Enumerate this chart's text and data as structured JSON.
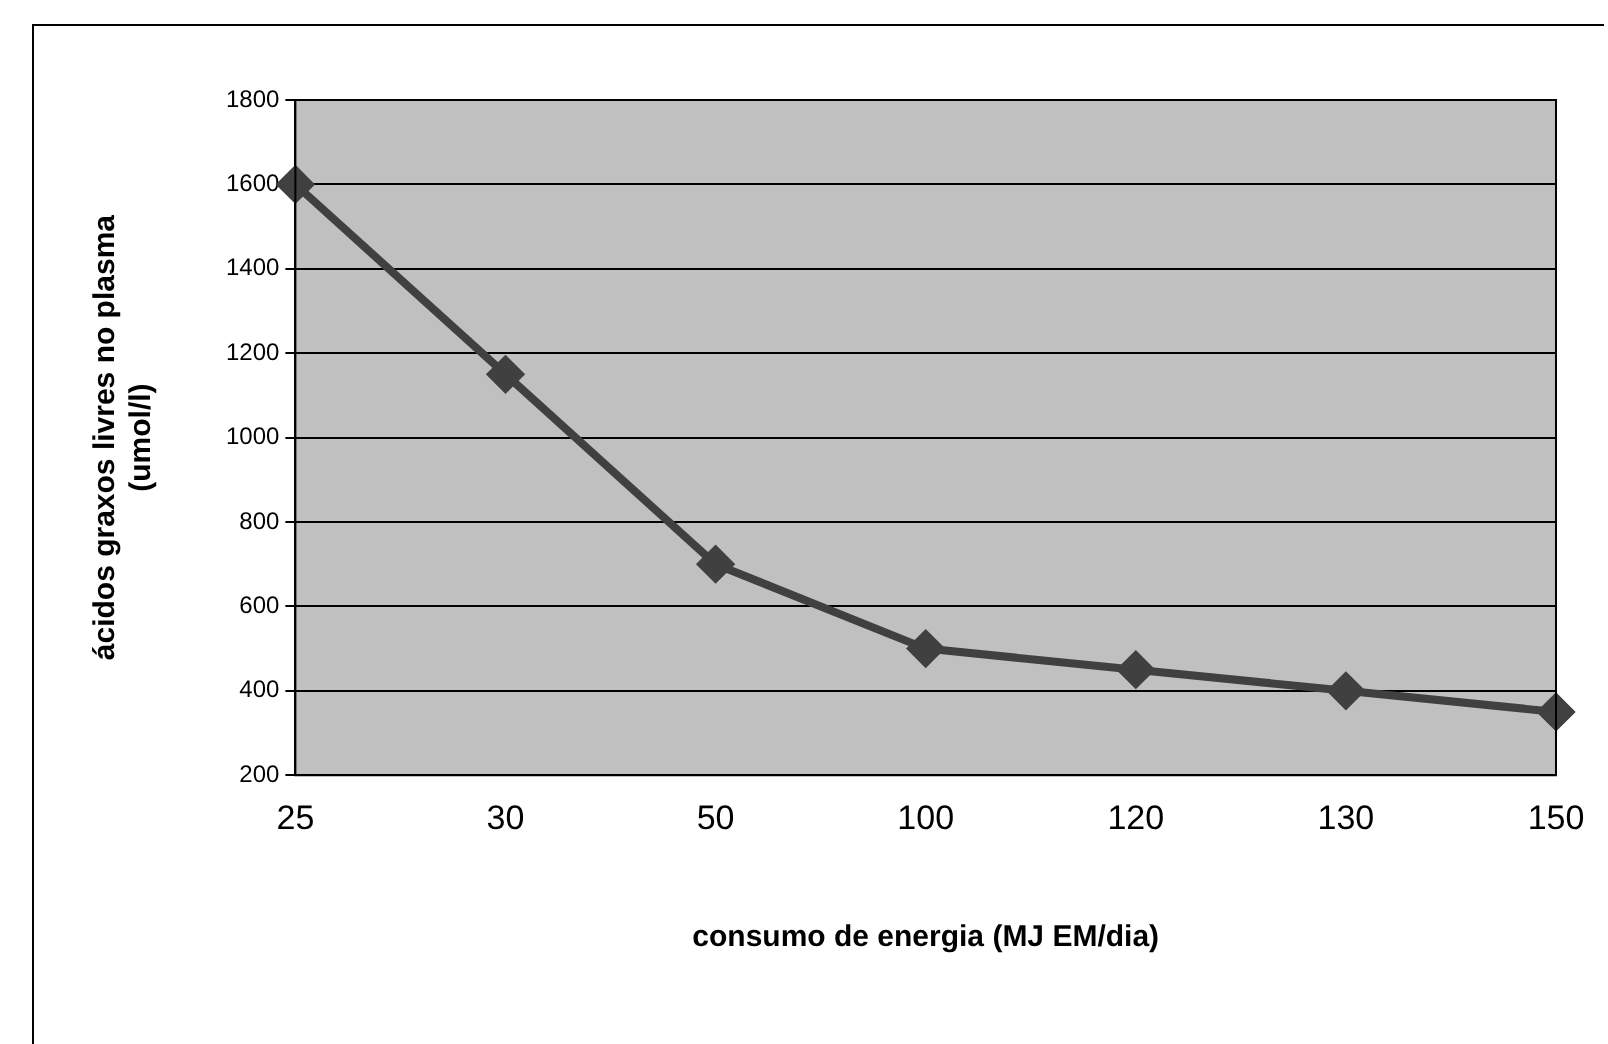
{
  "chart_data": {
    "type": "line",
    "xlabel": "consumo de energia (MJ EM/dia)",
    "ylabel": "ácidos graxos livres no plasma\n(umol/l)",
    "categories": [
      "25",
      "30",
      "50",
      "100",
      "120",
      "130",
      "150"
    ],
    "series": [
      {
        "color": "#404040",
        "values": [
          1600,
          1150,
          700,
          500,
          450,
          400,
          350
        ]
      }
    ],
    "ylim": [
      200,
      1800
    ],
    "yticks": [
      200,
      400,
      600,
      800,
      1000,
      1200,
      1400,
      1600,
      1800
    ],
    "grid": "y",
    "legend": false,
    "marker": "diamond",
    "line_style": "solid"
  }
}
